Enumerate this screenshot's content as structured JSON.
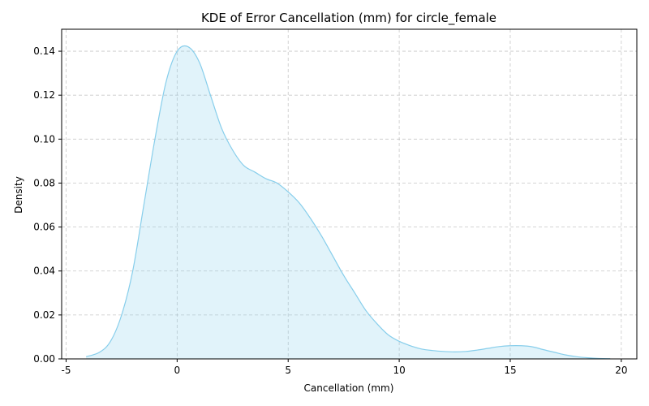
{
  "chart_data": {
    "type": "area",
    "title": "KDE of Error Cancellation (mm) for circle_female",
    "xlabel": "Cancellation (mm)",
    "ylabel": "Density",
    "xlim": [
      -5.2,
      20.7
    ],
    "ylim": [
      0,
      0.15
    ],
    "xticks": [
      -5,
      0,
      5,
      10,
      15,
      20
    ],
    "yticks": [
      0.0,
      0.02,
      0.04,
      0.06,
      0.08,
      0.1,
      0.12,
      0.14
    ],
    "ytick_labels": [
      "0.00",
      "0.02",
      "0.04",
      "0.06",
      "0.08",
      "0.10",
      "0.12",
      "0.14"
    ],
    "grid": true,
    "colors": {
      "line": "#87ceeb",
      "fill": "#87ceeb"
    },
    "series": [
      {
        "x": [
          -4.1,
          -3.5,
          -3.0,
          -2.5,
          -2.0,
          -1.5,
          -1.0,
          -0.5,
          0.0,
          0.5,
          1.0,
          1.5,
          2.0,
          2.5,
          3.0,
          3.5,
          4.0,
          4.5,
          5.0,
          5.5,
          6.0,
          6.5,
          7.0,
          7.5,
          8.0,
          8.5,
          9.0,
          9.5,
          10.0,
          10.5,
          11.0,
          11.5,
          12.0,
          12.5,
          13.0,
          13.5,
          14.0,
          14.5,
          15.0,
          15.5,
          16.0,
          16.5,
          17.0,
          17.5,
          18.0,
          18.5,
          19.0,
          19.5
        ],
        "y": [
          0.001,
          0.003,
          0.008,
          0.02,
          0.04,
          0.07,
          0.1,
          0.126,
          0.14,
          0.142,
          0.135,
          0.12,
          0.105,
          0.095,
          0.088,
          0.085,
          0.082,
          0.08,
          0.076,
          0.071,
          0.064,
          0.056,
          0.047,
          0.038,
          0.03,
          0.022,
          0.016,
          0.011,
          0.008,
          0.006,
          0.0045,
          0.0038,
          0.0034,
          0.0032,
          0.0034,
          0.004,
          0.0048,
          0.0056,
          0.006,
          0.006,
          0.0055,
          0.0042,
          0.003,
          0.0018,
          0.001,
          0.0005,
          0.0002,
          0.0001
        ]
      }
    ]
  }
}
